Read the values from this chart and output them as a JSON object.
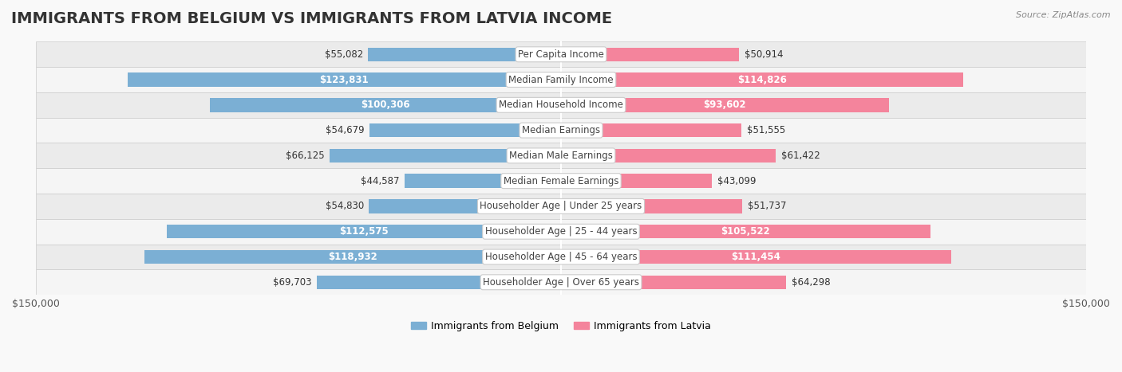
{
  "title": "IMMIGRANTS FROM BELGIUM VS IMMIGRANTS FROM LATVIA INCOME",
  "source": "Source: ZipAtlas.com",
  "categories": [
    "Per Capita Income",
    "Median Family Income",
    "Median Household Income",
    "Median Earnings",
    "Median Male Earnings",
    "Median Female Earnings",
    "Householder Age | Under 25 years",
    "Householder Age | 25 - 44 years",
    "Householder Age | 45 - 64 years",
    "Householder Age | Over 65 years"
  ],
  "belgium_values": [
    55082,
    123831,
    100306,
    54679,
    66125,
    44587,
    54830,
    112575,
    118932,
    69703
  ],
  "latvia_values": [
    50914,
    114826,
    93602,
    51555,
    61422,
    43099,
    51737,
    105522,
    111454,
    64298
  ],
  "belgium_labels": [
    "$55,082",
    "$123,831",
    "$100,306",
    "$54,679",
    "$66,125",
    "$44,587",
    "$54,830",
    "$112,575",
    "$118,932",
    "$69,703"
  ],
  "latvia_labels": [
    "$50,914",
    "$114,826",
    "$93,602",
    "$51,555",
    "$61,422",
    "$43,099",
    "$51,737",
    "$105,522",
    "$111,454",
    "$64,298"
  ],
  "belgium_color": "#7bafd4",
  "latvia_color": "#f4849c",
  "belgium_color_dark": "#5a9fc4",
  "latvia_color_dark": "#f06080",
  "max_value": 150000,
  "legend_belgium": "Immigrants from Belgium",
  "legend_latvia": "Immigrants from Latvia",
  "background_color": "#f5f5f5",
  "row_background": "#ffffff",
  "row_alt_background": "#f0f0f0",
  "bar_height": 0.55,
  "title_fontsize": 14,
  "label_fontsize": 8.5,
  "category_fontsize": 8.5
}
